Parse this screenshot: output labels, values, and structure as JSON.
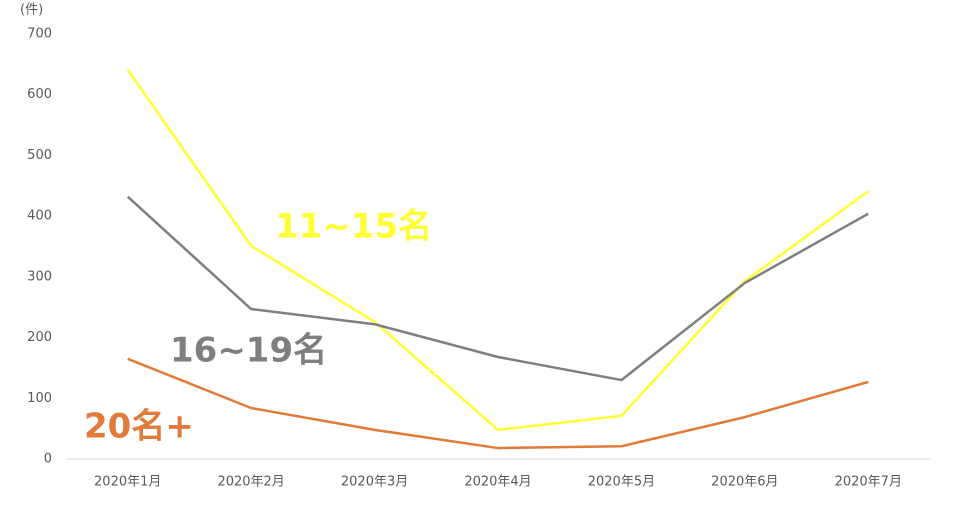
{
  "chart_data": {
    "type": "line",
    "y_unit": "(件)",
    "categories": [
      "2020年1月",
      "2020年2月",
      "2020年3月",
      "2020年4月",
      "2020年5月",
      "2020年6月",
      "2020年7月"
    ],
    "series": [
      {
        "name": "11~15名",
        "color": "#ffff33",
        "values": [
          641,
          351,
          226,
          48,
          71,
          293,
          441
        ]
      },
      {
        "name": "16~19名",
        "color": "#7f7f7f",
        "values": [
          432,
          247,
          222,
          168,
          130,
          290,
          404
        ]
      },
      {
        "name": "20名+",
        "color": "#e07b39",
        "values": [
          165,
          84,
          48,
          18,
          21,
          69,
          127
        ]
      }
    ],
    "ylim": [
      0,
      700
    ],
    "yticks": [
      0,
      100,
      200,
      300,
      400,
      500,
      600,
      700
    ],
    "grid": false
  }
}
